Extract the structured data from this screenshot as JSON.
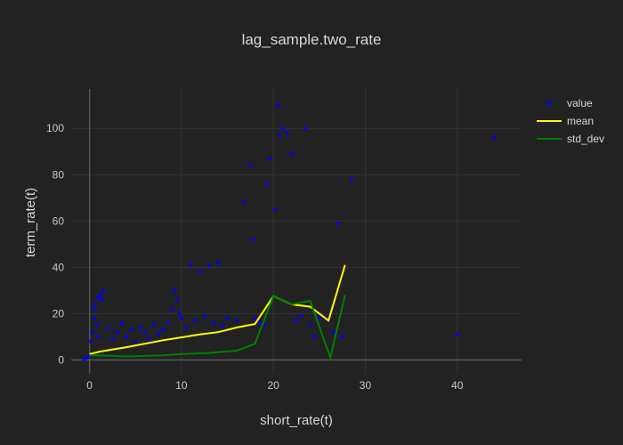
{
  "chart_data": {
    "type": "scatter",
    "title": "lag_sample.two_rate",
    "xlabel": "short_rate(t)",
    "ylabel": "term_rate(t)",
    "xlim": [
      -2,
      47
    ],
    "ylim": [
      -6,
      117
    ],
    "xticks": [
      0,
      10,
      20,
      30,
      40
    ],
    "yticks": [
      0,
      20,
      40,
      60,
      80,
      100
    ],
    "grid": true,
    "legend_position": "top-right",
    "series": [
      {
        "name": "value",
        "kind": "markers",
        "color": "#0000ff",
        "points": [
          [
            -0.6,
            0.2
          ],
          [
            -0.3,
            0.8
          ],
          [
            0,
            1.5
          ],
          [
            0.2,
            2.5
          ],
          [
            0.1,
            8
          ],
          [
            0.3,
            12
          ],
          [
            0.5,
            18
          ],
          [
            0.6,
            24
          ],
          [
            0.9,
            27
          ],
          [
            1.2,
            28
          ],
          [
            1.5,
            30
          ],
          [
            0.4,
            22
          ],
          [
            0.8,
            15
          ],
          [
            1,
            10
          ],
          [
            1.3,
            26
          ],
          [
            2,
            14
          ],
          [
            2.5,
            9
          ],
          [
            3,
            12
          ],
          [
            3.5,
            16
          ],
          [
            4,
            10
          ],
          [
            4.5,
            13
          ],
          [
            5,
            8
          ],
          [
            5.5,
            14
          ],
          [
            6,
            12
          ],
          [
            6.5,
            9
          ],
          [
            7,
            15
          ],
          [
            7.5,
            11
          ],
          [
            8,
            13
          ],
          [
            8.5,
            16
          ],
          [
            9,
            22
          ],
          [
            9.2,
            30
          ],
          [
            9.5,
            26
          ],
          [
            9.8,
            20
          ],
          [
            10,
            18
          ],
          [
            10.5,
            14
          ],
          [
            11,
            41
          ],
          [
            11.5,
            17
          ],
          [
            12,
            38
          ],
          [
            12.5,
            19
          ],
          [
            13,
            41
          ],
          [
            13.5,
            16
          ],
          [
            14,
            42
          ],
          [
            14.5,
            15
          ],
          [
            15,
            18
          ],
          [
            16,
            17
          ],
          [
            16.8,
            68
          ],
          [
            17.5,
            84
          ],
          [
            17.8,
            52
          ],
          [
            18,
            18
          ],
          [
            18.5,
            16
          ],
          [
            19,
            15
          ],
          [
            19.3,
            76
          ],
          [
            19.6,
            87
          ],
          [
            20.2,
            65
          ],
          [
            20.5,
            110
          ],
          [
            20.7,
            97
          ],
          [
            21,
            100
          ],
          [
            21.5,
            98
          ],
          [
            22,
            89
          ],
          [
            22.5,
            17
          ],
          [
            23,
            19
          ],
          [
            23.5,
            100
          ],
          [
            24,
            15
          ],
          [
            24.5,
            10
          ],
          [
            25,
            18
          ],
          [
            26,
            17
          ],
          [
            26.5,
            12
          ],
          [
            27,
            59
          ],
          [
            27.5,
            10
          ],
          [
            28.5,
            78
          ],
          [
            40,
            11
          ],
          [
            44,
            96
          ]
        ]
      },
      {
        "name": "mean",
        "kind": "line",
        "color": "#ffff00",
        "points": [
          [
            0,
            2.5
          ],
          [
            1,
            3.5
          ],
          [
            4,
            5.5
          ],
          [
            8,
            8.5
          ],
          [
            12,
            11
          ],
          [
            14,
            12
          ],
          [
            16,
            14
          ],
          [
            18,
            15.5
          ],
          [
            20,
            27.5
          ],
          [
            22,
            24
          ],
          [
            24,
            23
          ],
          [
            26,
            17
          ],
          [
            27.8,
            41
          ]
        ]
      },
      {
        "name": "std_dev",
        "kind": "line",
        "color": "#008000",
        "points": [
          [
            0,
            2
          ],
          [
            1,
            2
          ],
          [
            4,
            1.5
          ],
          [
            8,
            2
          ],
          [
            10,
            2.5
          ],
          [
            13,
            3
          ],
          [
            16,
            4
          ],
          [
            18,
            7
          ],
          [
            20,
            27.5
          ],
          [
            22,
            24
          ],
          [
            24,
            25.5
          ],
          [
            26.2,
            1
          ],
          [
            27.8,
            28
          ]
        ]
      }
    ]
  }
}
